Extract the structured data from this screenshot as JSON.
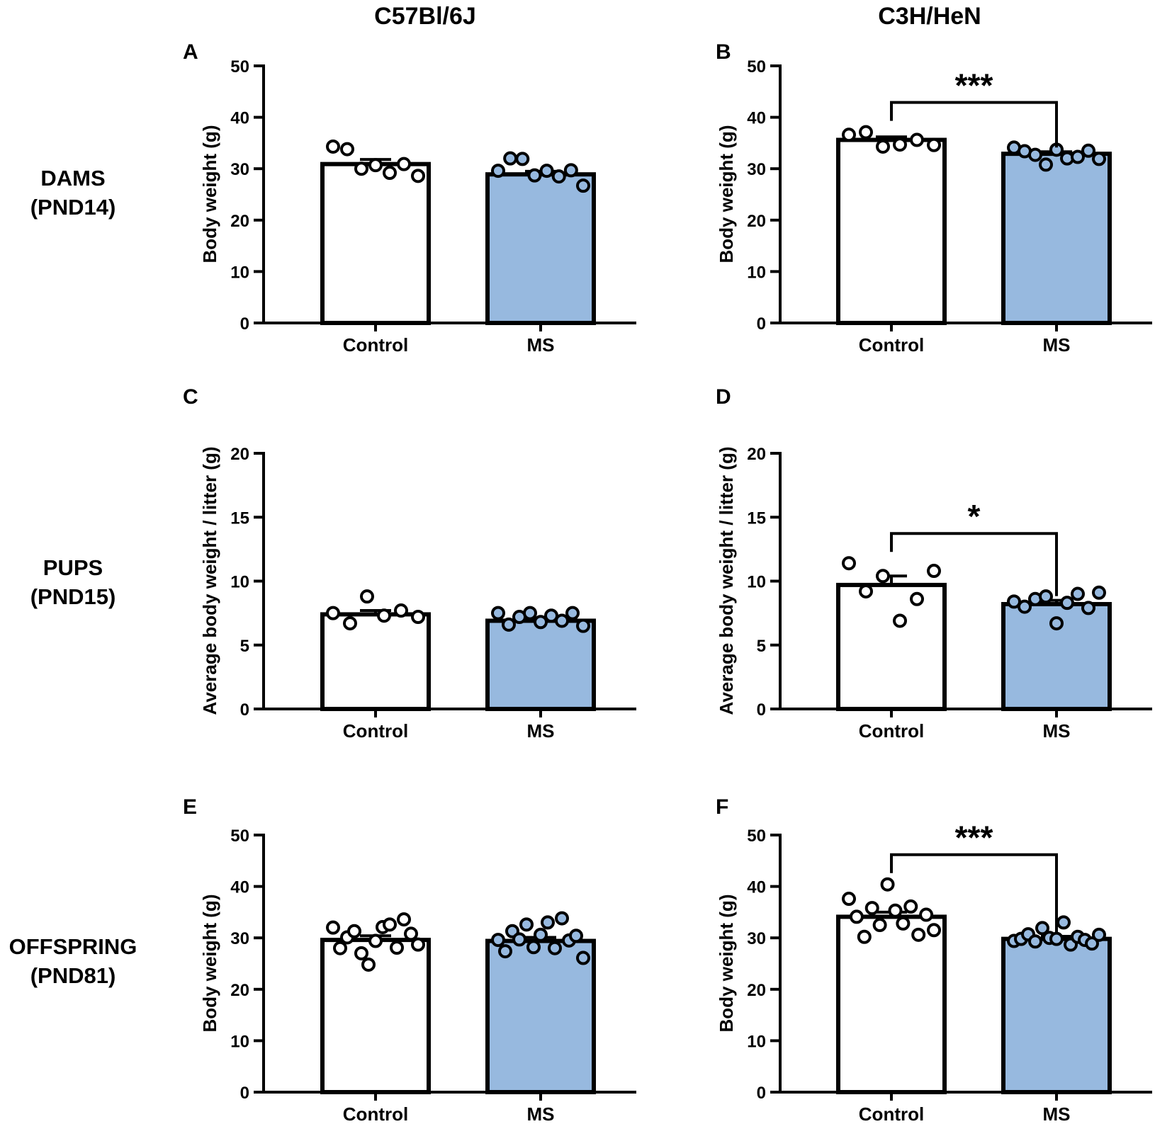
{
  "figure": {
    "column_titles": [
      "C57Bl/6J",
      "C3H/HeN"
    ],
    "row_labels": [
      [
        "DAMS",
        "(PND14)"
      ],
      [
        "PUPS",
        "(PND15)"
      ],
      [
        "OFFSPRING",
        "(PND81)"
      ]
    ]
  },
  "colors": {
    "control_fill": "#ffffff",
    "ms_fill": "#97b9df",
    "stroke": "#000000"
  },
  "chart_data": [
    {
      "panel": "A",
      "type": "bar",
      "title": "",
      "categories": [
        "Control",
        "MS"
      ],
      "values": [
        30.9,
        28.9
      ],
      "sem": [
        0.9,
        0.6
      ],
      "points": [
        [
          34.3,
          33.8,
          30.0,
          30.7,
          29.2,
          30.9,
          28.6
        ],
        [
          29.6,
          32.0,
          31.9,
          28.7,
          29.6,
          28.5,
          29.7,
          26.7
        ]
      ],
      "ylabel": "Body weight (g)",
      "ylim": [
        0,
        50
      ],
      "yticks": [
        0,
        10,
        20,
        30,
        40,
        50
      ],
      "significance": null
    },
    {
      "panel": "B",
      "type": "bar",
      "title": "",
      "categories": [
        "Control",
        "MS"
      ],
      "values": [
        35.6,
        32.9
      ],
      "sem": [
        0.6,
        0.4
      ],
      "points": [
        [
          36.6,
          37.1,
          34.3,
          34.7,
          35.6,
          34.6
        ],
        [
          34.1,
          33.4,
          32.7,
          30.8,
          33.7,
          32.0,
          32.3,
          33.5,
          31.9
        ]
      ],
      "ylabel": "Body weight (g)",
      "ylim": [
        0,
        50
      ],
      "yticks": [
        0,
        10,
        20,
        30,
        40,
        50
      ],
      "significance": "***"
    },
    {
      "panel": "C",
      "type": "bar",
      "title": "",
      "categories": [
        "Control",
        "MS"
      ],
      "values": [
        7.4,
        6.9
      ],
      "sem": [
        0.3,
        0.2
      ],
      "points": [
        [
          7.5,
          6.7,
          8.8,
          7.3,
          7.7,
          7.2
        ],
        [
          7.5,
          6.6,
          7.2,
          7.5,
          6.8,
          7.3,
          6.9,
          7.5,
          6.5
        ]
      ],
      "ylabel": "Average body weight / litter (g)",
      "ylim": [
        0,
        20
      ],
      "yticks": [
        0,
        5,
        10,
        15,
        20
      ],
      "significance": null
    },
    {
      "panel": "D",
      "type": "bar",
      "title": "",
      "categories": [
        "Control",
        "MS"
      ],
      "values": [
        9.7,
        8.2
      ],
      "sem": [
        0.7,
        0.3
      ],
      "points": [
        [
          11.4,
          9.2,
          10.4,
          6.9,
          8.6,
          10.8
        ],
        [
          8.4,
          8.0,
          8.6,
          8.8,
          6.7,
          8.3,
          9.0,
          7.9,
          9.1
        ]
      ],
      "ylabel": "Average body weight / litter (g)",
      "ylim": [
        0,
        20
      ],
      "yticks": [
        0,
        5,
        10,
        15,
        20
      ],
      "significance": "*"
    },
    {
      "panel": "E",
      "type": "bar",
      "title": "",
      "categories": [
        "Control",
        "MS"
      ],
      "values": [
        29.6,
        29.4
      ],
      "sem": [
        0.8,
        0.7
      ],
      "points": [
        [
          32.0,
          28.0,
          30.1,
          31.3,
          27.0,
          24.8,
          29.4,
          32.1,
          32.6,
          28.1,
          33.6,
          30.8,
          28.7
        ],
        [
          29.6,
          27.4,
          31.3,
          29.7,
          32.6,
          28.2,
          30.6,
          33.0,
          28.0,
          33.8,
          29.5,
          30.4,
          26.1
        ]
      ],
      "ylabel": "Body weight (g)",
      "ylim": [
        0,
        50
      ],
      "yticks": [
        0,
        10,
        20,
        30,
        40,
        50
      ],
      "significance": null
    },
    {
      "panel": "F",
      "type": "bar",
      "title": "",
      "categories": [
        "Control",
        "MS"
      ],
      "values": [
        34.1,
        29.8
      ],
      "sem": [
        0.9,
        0.5
      ],
      "points": [
        [
          37.6,
          34.1,
          30.2,
          35.8,
          32.5,
          40.4,
          35.3,
          32.8,
          36.1,
          30.6,
          34.5,
          31.5
        ],
        [
          29.4,
          29.8,
          30.7,
          29.3,
          31.9,
          30.0,
          29.8,
          33.0,
          28.7,
          30.2,
          29.6,
          28.9,
          30.6
        ]
      ],
      "ylabel": "Body weight (g)",
      "ylim": [
        0,
        50
      ],
      "yticks": [
        0,
        10,
        20,
        30,
        40,
        50
      ],
      "significance": "***"
    }
  ]
}
